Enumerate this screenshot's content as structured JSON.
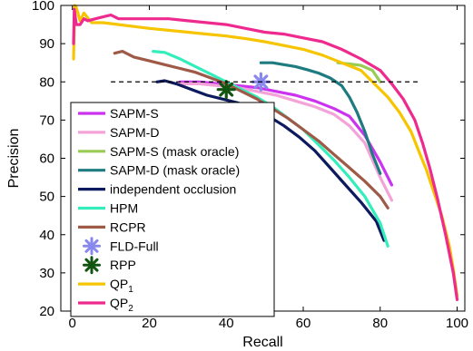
{
  "chart_data": {
    "type": "line",
    "xlabel": "Recall",
    "ylabel": "Precision",
    "xlim": [
      -3,
      102
    ],
    "ylim": [
      20,
      100
    ],
    "xticks": [
      0,
      20,
      40,
      60,
      80,
      100
    ],
    "yticks": [
      20,
      30,
      40,
      50,
      60,
      70,
      80,
      90,
      100
    ],
    "grid": false,
    "legend_position": "lower-left",
    "reference_line": {
      "y": 80,
      "x": [
        10,
        90
      ],
      "style": "dashed",
      "color": "#000000"
    },
    "series": [
      {
        "name": "SAPM-S",
        "color": "#cc33ee",
        "kind": "line",
        "x": [
          28,
          33,
          38,
          43,
          48,
          53,
          58,
          63,
          68,
          72,
          76,
          80,
          83
        ],
        "y": [
          80,
          80,
          79.5,
          79,
          78.5,
          77.5,
          76.5,
          75,
          73,
          71,
          66,
          59,
          53
        ]
      },
      {
        "name": "SAPM-D",
        "color": "#f4a3d8",
        "kind": "line",
        "x": [
          28,
          33,
          38,
          43,
          48,
          53,
          58,
          63,
          68,
          72,
          76,
          80,
          83
        ],
        "y": [
          79.5,
          79.5,
          79,
          78.5,
          77.5,
          76.5,
          75,
          73.5,
          71.5,
          68.5,
          64,
          55,
          49
        ]
      },
      {
        "name": "SAPM-S (mask oracle)",
        "color": "#99cc55",
        "kind": "line",
        "x": [
          69,
          72,
          75,
          78,
          80
        ],
        "y": [
          85,
          84.7,
          84.3,
          83,
          80
        ]
      },
      {
        "name": "SAPM-D (mask oracle)",
        "color": "#1e7b80",
        "kind": "line",
        "x": [
          49,
          52,
          55,
          58,
          61,
          64,
          67,
          70,
          72,
          74,
          76,
          78,
          80
        ],
        "y": [
          85,
          85,
          84.5,
          84,
          83.2,
          82.3,
          81,
          79,
          76,
          72,
          67,
          61,
          56
        ]
      },
      {
        "name": "independent occlusion",
        "color": "#0d1b5e",
        "kind": "line",
        "x": [
          22,
          24,
          27,
          31,
          35,
          39,
          43,
          47,
          51,
          55,
          59,
          63,
          67,
          71,
          75,
          79,
          81
        ],
        "y": [
          80,
          80.3,
          79.5,
          78,
          76.5,
          75.5,
          74.5,
          73,
          71,
          68.5,
          65.5,
          62,
          57.5,
          53,
          48.5,
          43.5,
          38.5
        ]
      },
      {
        "name": "HPM",
        "color": "#33eebb",
        "kind": "line",
        "x": [
          21,
          24,
          28,
          32,
          36,
          40,
          44,
          48,
          52,
          56,
          60,
          64,
          68,
          72,
          76,
          80,
          82
        ],
        "y": [
          88,
          87.7,
          86,
          84,
          82,
          80,
          78,
          76,
          73.5,
          70.5,
          67.5,
          63.5,
          59.5,
          55,
          50,
          43,
          37
        ]
      },
      {
        "name": "RCPR",
        "color": "#9e5a47",
        "kind": "line",
        "x": [
          11,
          13,
          16,
          20,
          24,
          28,
          32,
          36,
          40,
          44,
          48,
          52,
          56,
          60,
          64,
          68,
          72,
          76,
          80,
          82
        ],
        "y": [
          87.5,
          88,
          86.5,
          85.5,
          84.5,
          83.5,
          82.5,
          81,
          79.5,
          77.5,
          75.5,
          73,
          70.5,
          67.5,
          64.5,
          61,
          57.5,
          54,
          50,
          47
        ]
      },
      {
        "name": "FLD-Full",
        "color": "#8888ee",
        "kind": "marker",
        "x": [
          49
        ],
        "y": [
          80
        ]
      },
      {
        "name": "RPP",
        "color": "#115511",
        "kind": "marker",
        "x": [
          40
        ],
        "y": [
          78
        ]
      },
      {
        "name": "QP₁",
        "color": "#f7c400",
        "kind": "line",
        "x": [
          0.3,
          0.6,
          1,
          2,
          3,
          5,
          8,
          12,
          16,
          20,
          25,
          30,
          35,
          40,
          45,
          50,
          55,
          60,
          65,
          70,
          75,
          78,
          82,
          85,
          88,
          90,
          92,
          94,
          96,
          98,
          99,
          100
        ],
        "y": [
          86,
          100,
          99.5,
          96,
          98,
          95.5,
          95.5,
          95,
          94.5,
          94,
          93.5,
          93,
          92.5,
          92,
          91.3,
          90.5,
          89.5,
          88.5,
          87,
          85,
          83,
          80,
          76,
          72,
          67,
          62,
          57,
          51,
          45,
          37,
          31,
          24
        ]
      },
      {
        "name": "QP₂",
        "color": "#ee2a8e",
        "kind": "line",
        "x": [
          0.3,
          0.5,
          1,
          2,
          3,
          4,
          6,
          8,
          10,
          12,
          15,
          20,
          25,
          30,
          35,
          40,
          45,
          50,
          55,
          60,
          65,
          70,
          75,
          80,
          83,
          86,
          89,
          91,
          93,
          95,
          97,
          99,
          100
        ],
        "y": [
          90,
          99,
          95,
          95,
          96.5,
          96,
          96.5,
          97,
          97.5,
          96.5,
          96.5,
          96.5,
          96.5,
          96,
          95.5,
          95,
          94,
          93,
          92.5,
          91.5,
          90.5,
          88.5,
          86,
          83,
          79.5,
          75.5,
          70,
          64,
          57,
          49,
          40,
          30,
          23
        ]
      }
    ]
  }
}
